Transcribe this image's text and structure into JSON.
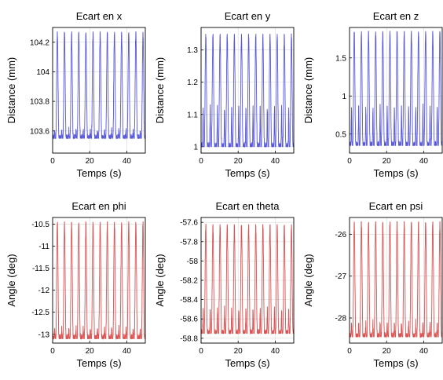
{
  "chart_data": [
    {
      "type": "line",
      "title": "Ecart en x",
      "xlabel": "Temps (s)",
      "ylabel": "Distance (mm)",
      "xlim": [
        0,
        50
      ],
      "ylim": [
        103.45,
        104.3
      ],
      "xticks": [
        "0",
        "20",
        "40"
      ],
      "yticks": [
        "103.6",
        "103.8",
        "104",
        "104.2"
      ],
      "grid": true,
      "color": "#3b3bd6",
      "series": [
        {
          "period": 3.85,
          "min": 103.55,
          "max": 104.27,
          "notch": 103.62
        }
      ]
    },
    {
      "type": "line",
      "title": "Ecart en y",
      "xlabel": "Temps (s)",
      "ylabel": "Distance (mm)",
      "xlim": [
        0,
        50
      ],
      "ylim": [
        0.98,
        1.37
      ],
      "xticks": [
        "0",
        "20",
        "40"
      ],
      "yticks": [
        "1",
        "1.1",
        "1.2",
        "1.3"
      ],
      "grid": true,
      "color": "#3b3bd6",
      "series": [
        {
          "period": 3.85,
          "min": 1.0,
          "max": 1.35,
          "notch": 1.17
        }
      ]
    },
    {
      "type": "line",
      "title": "Ecart en z",
      "xlabel": "Temps (s)",
      "ylabel": "Distance (mm)",
      "xlim": [
        0,
        50
      ],
      "ylim": [
        0.25,
        1.9
      ],
      "xticks": [
        "0",
        "20",
        "40"
      ],
      "yticks": [
        "0.5",
        "1",
        "1.5"
      ],
      "grid": true,
      "color": "#3b3bd6",
      "series": [
        {
          "period": 3.85,
          "min": 0.35,
          "max": 1.85,
          "notch": 1.05
        }
      ]
    },
    {
      "type": "line",
      "title": "Ecart en phi",
      "xlabel": "Temps (s)",
      "ylabel": "Angle (deg)",
      "xlim": [
        0,
        50
      ],
      "ylim": [
        -13.2,
        -10.35
      ],
      "xticks": [
        "0",
        "20",
        "40"
      ],
      "yticks": [
        "-10.5",
        "-11",
        "-11.5",
        "-12",
        "-12.5",
        "-13"
      ],
      "grid": true,
      "color": "#d43434",
      "series": [
        {
          "period": 3.85,
          "min": -13.1,
          "max": -10.45,
          "notch": -12.8
        }
      ]
    },
    {
      "type": "line",
      "title": "Ecart en theta",
      "xlabel": "Temps (s)",
      "ylabel": "Angle (deg)",
      "xlim": [
        0,
        50
      ],
      "ylim": [
        -58.85,
        -57.55
      ],
      "xticks": [
        "0",
        "20",
        "40"
      ],
      "yticks": [
        "-57.6",
        "-57.8",
        "-58",
        "-58.2",
        "-58.4",
        "-58.6",
        "-58.8"
      ],
      "grid": true,
      "color": "#d43434",
      "series": [
        {
          "period": 3.85,
          "min": -58.75,
          "max": -57.62,
          "notch": -58.4
        }
      ]
    },
    {
      "type": "line",
      "title": "Ecart en psi",
      "xlabel": "Temps (s)",
      "ylabel": "Angle (deg)",
      "xlim": [
        0,
        50
      ],
      "ylim": [
        -28.6,
        -25.6
      ],
      "xticks": [
        "0",
        "20",
        "40"
      ],
      "yticks": [
        "-26",
        "-27",
        "-28"
      ],
      "grid": true,
      "color": "#d43434",
      "series": [
        {
          "period": 3.85,
          "min": -28.45,
          "max": -25.7,
          "notch": -28.0
        }
      ]
    }
  ]
}
